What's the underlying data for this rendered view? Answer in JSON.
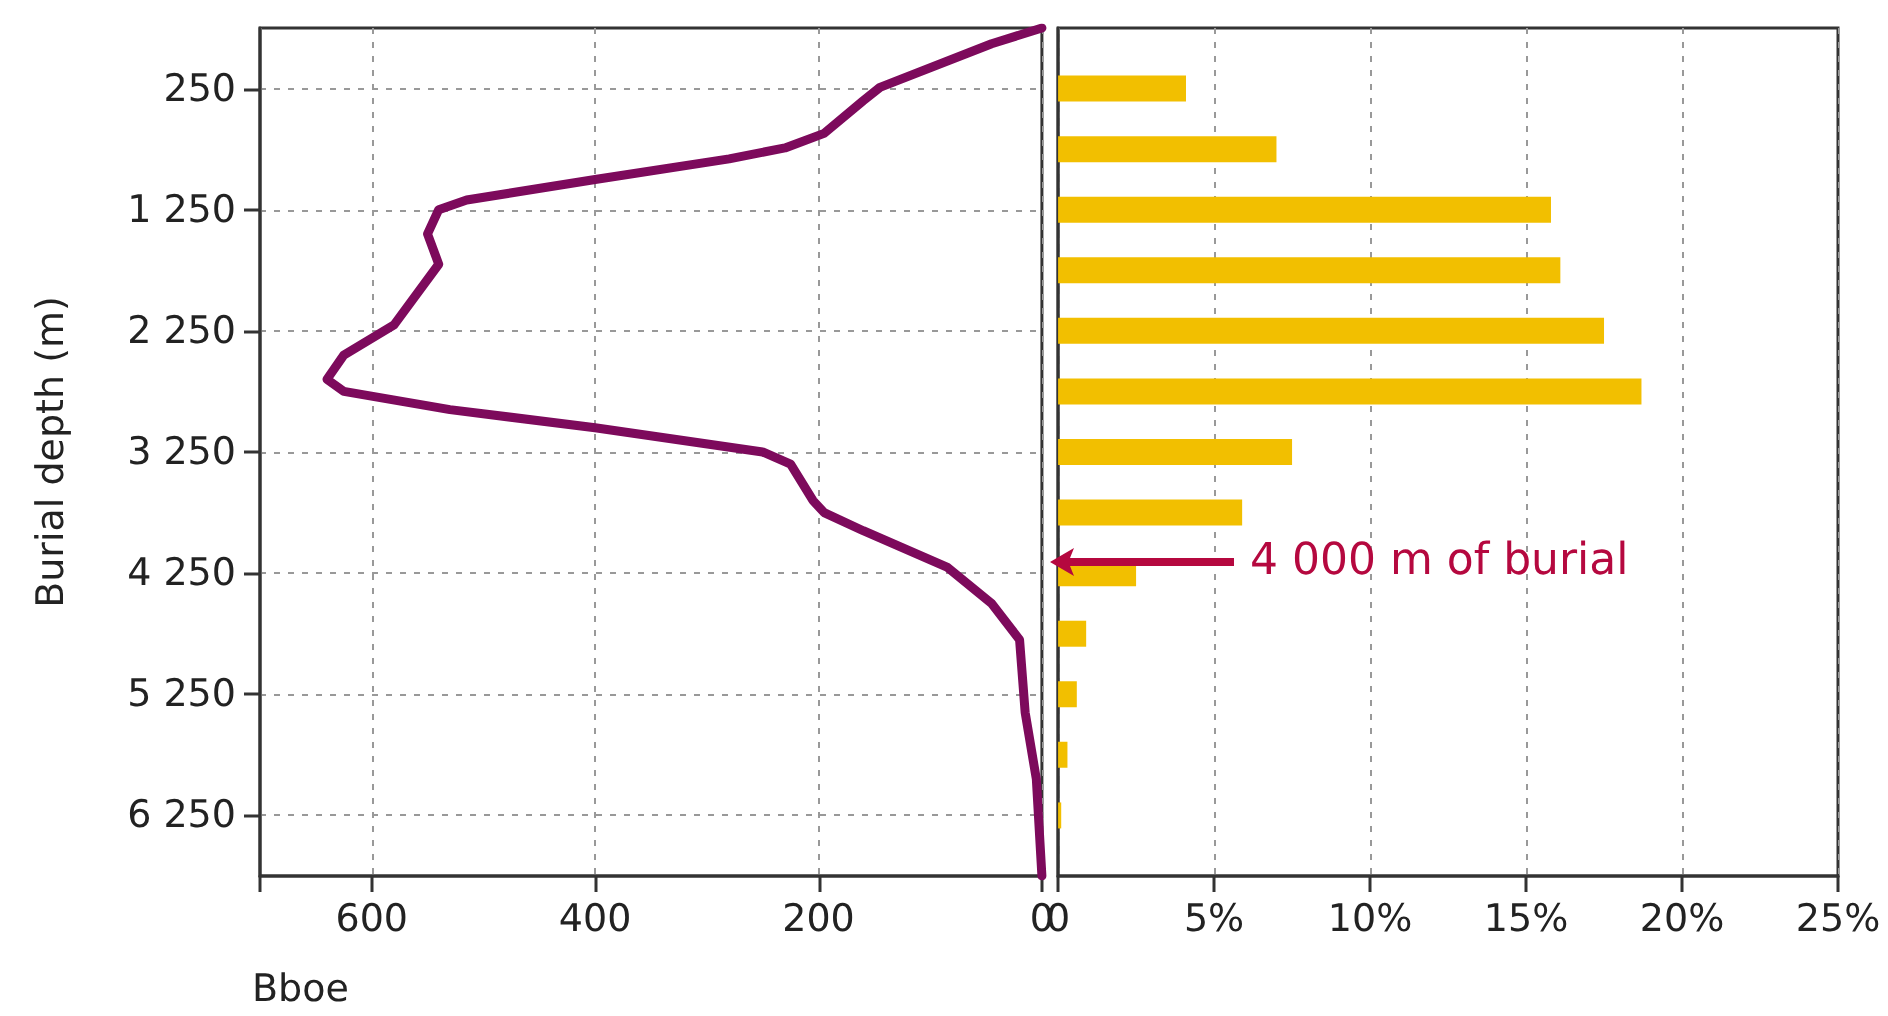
{
  "chart_data": [
    {
      "type": "line",
      "xlabel": "Bboe",
      "ylabel": "Burial depth (m)",
      "xlim": [
        700,
        0
      ],
      "xticks": [
        {
          "value": 700,
          "label": null
        },
        600,
        400,
        200,
        0
      ],
      "ylim": [
        6750,
        -250
      ],
      "yticks": [
        {
          "value": 250,
          "label": "250"
        },
        {
          "value": 1250,
          "label": "1 250"
        },
        {
          "value": 2250,
          "label": "2 250"
        },
        {
          "value": 3250,
          "label": "3 250"
        },
        {
          "value": 4250,
          "label": "4 250"
        },
        {
          "value": 5250,
          "label": "5 250"
        },
        {
          "value": 6250,
          "label": "6 250"
        }
      ],
      "grid": true,
      "marker": "none",
      "line_style": "solid",
      "series": [
        {
          "color": "#7d0a5c",
          "x": [
            0,
            45,
            145,
            160,
            195,
            230,
            280,
            400,
            515,
            540,
            550,
            540,
            580,
            625,
            640,
            625,
            530,
            400,
            250,
            225,
            205,
            195,
            160,
            85,
            45,
            20,
            15,
            5,
            0
          ],
          "values": [
            -250,
            -120,
            240,
            350,
            620,
            740,
            830,
            1000,
            1170,
            1250,
            1450,
            1700,
            2200,
            2450,
            2650,
            2750,
            2900,
            3050,
            3250,
            3350,
            3650,
            3750,
            3900,
            4200,
            4500,
            4800,
            5400,
            5950,
            6750
          ]
        }
      ]
    },
    {
      "type": "bar",
      "orientation": "horizontal",
      "x": [
        250,
        750,
        1250,
        1750,
        2250,
        2750,
        3250,
        3750,
        4250,
        4750,
        5250,
        5750,
        6250
      ],
      "values": [
        4.1,
        7.0,
        15.8,
        16.1,
        17.5,
        18.7,
        7.5,
        5.9,
        2.5,
        0.9,
        0.6,
        0.3,
        0.1
      ],
      "color": "#f2bf00",
      "xlim": [
        0,
        25
      ],
      "xticks": [
        0,
        {
          "value": 5,
          "label": "5%"
        },
        {
          "value": 10,
          "label": "10%"
        },
        {
          "value": 15,
          "label": "15%"
        },
        {
          "value": 20,
          "label": "20%"
        },
        {
          "value": 25,
          "label": "25%"
        }
      ],
      "ylim": [
        6750,
        -250
      ],
      "grid": "x",
      "tick_labels": "x",
      "annotations": [
        "4 000 m of burial"
      ]
    }
  ]
}
